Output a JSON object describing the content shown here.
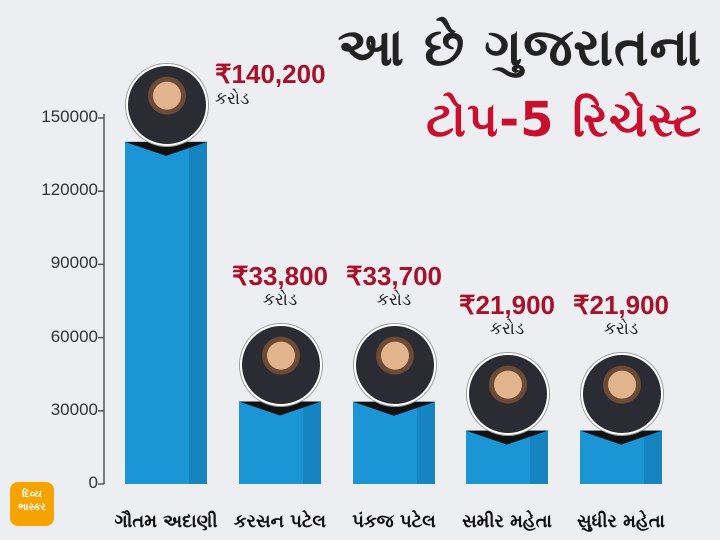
{
  "title_line1": "આ છે ગુજરાતના",
  "title_line2": "ટોપ-5 રિચેસ્ટ",
  "logo_text": "દિવ્ય ભાસ્કર",
  "colors": {
    "bar": "#1c95d4",
    "bar_dark": "#0f6fa8",
    "title_accent": "#c8102e",
    "value_label": "#a5122a"
  },
  "chart_data": {
    "type": "bar",
    "categories": [
      "ગૌતમ અદાણી",
      "કરસન પટેલ",
      "પંકજ પટેલ",
      "સમીર મહેતા",
      "સુધીર મહેતા"
    ],
    "values": [
      140200,
      33800,
      33700,
      21900,
      21900
    ],
    "value_labels": [
      "₹140,200",
      "₹33,800",
      "₹33,700",
      "₹21,900",
      "₹21,900"
    ],
    "unit_label": "કરોડ",
    "ylim": [
      0,
      150000
    ],
    "yticks": [
      0,
      30000,
      60000,
      90000,
      120000,
      150000
    ],
    "grid": false,
    "legend": "none"
  }
}
